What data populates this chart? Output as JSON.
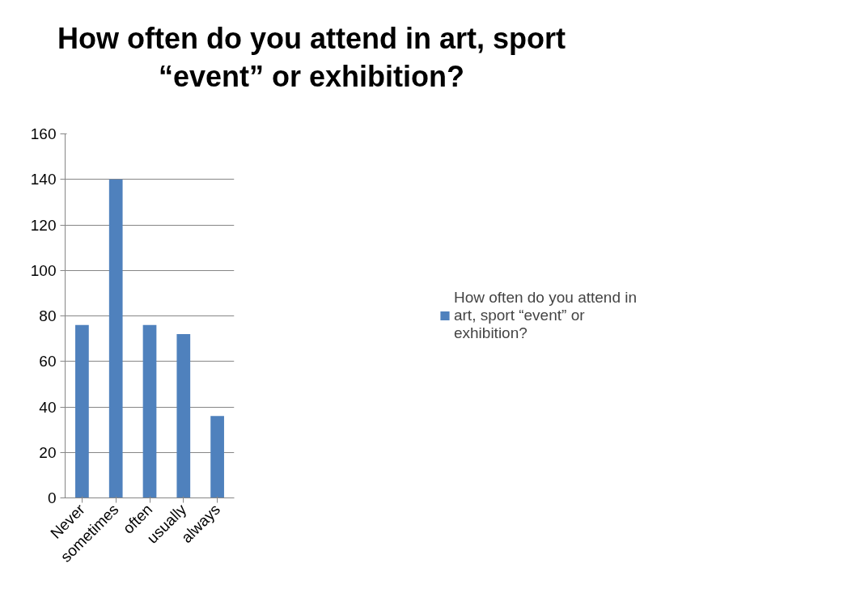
{
  "chart_data": {
    "type": "bar",
    "title": "How often do you attend in art, sport “event” or exhibition?",
    "categories": [
      "Never",
      "sometimes",
      "often",
      "usually",
      "always"
    ],
    "series": [
      {
        "name": "How often do you attend in art, sport “event” or exhibition?",
        "color": "#4f81bd",
        "values": [
          76,
          140,
          76,
          72,
          36
        ]
      }
    ],
    "ylim": [
      0,
      160
    ],
    "yticks": [
      0,
      20,
      40,
      60,
      80,
      100,
      120,
      140,
      160
    ],
    "grid": "y",
    "legend": "right"
  }
}
